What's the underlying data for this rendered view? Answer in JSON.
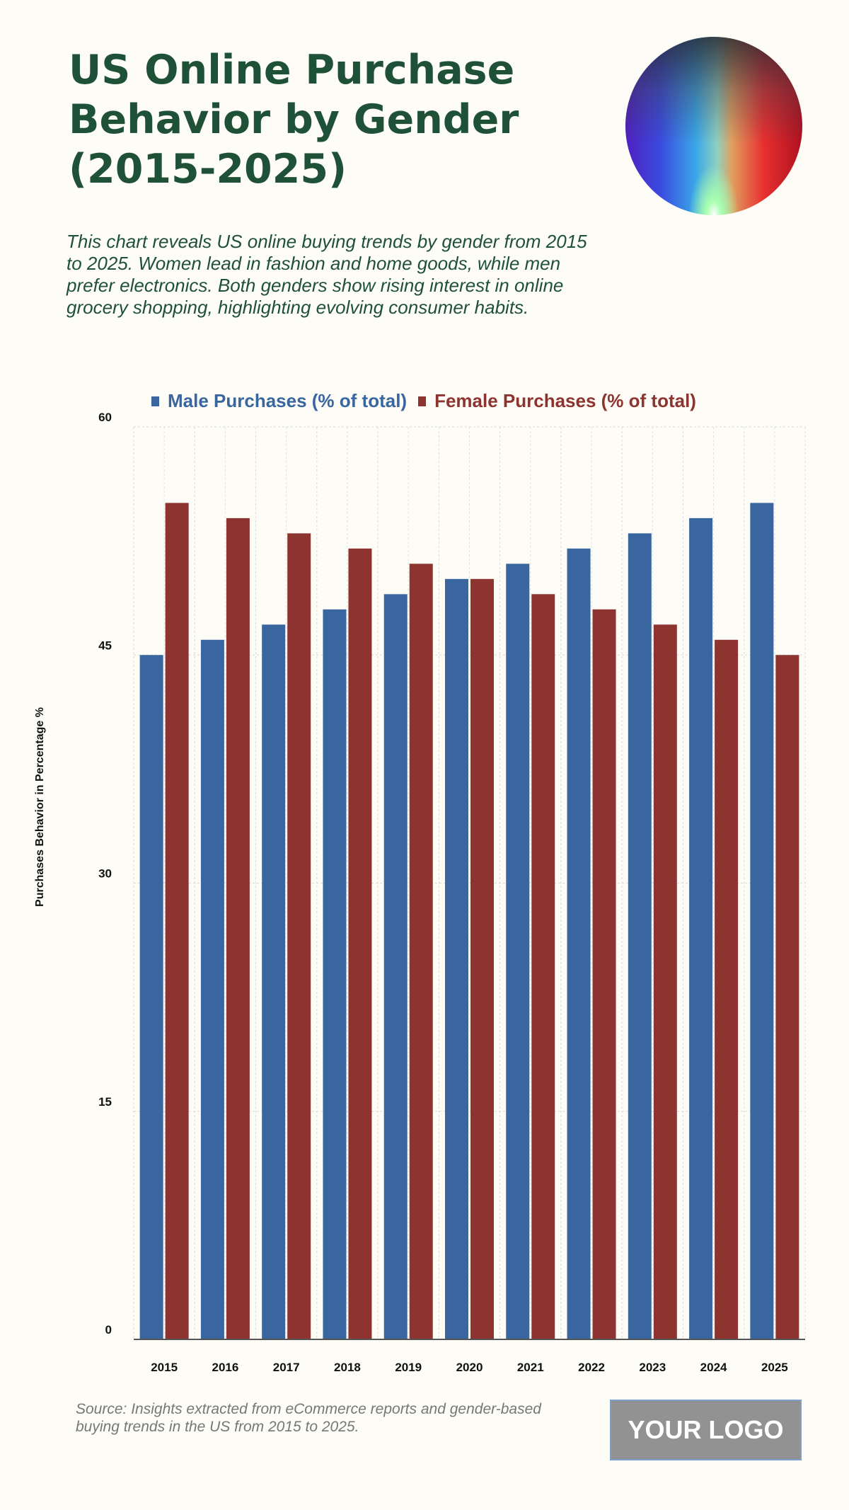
{
  "header": {
    "title": "US Online Purchase Behavior by Gender (2015-2025)",
    "subtitle": "This chart reveals US online buying trends by gender from 2015 to 2025. Women lead in fashion and home goods, while men prefer electronics. Both genders show rising interest in online grocery shopping, highlighting evolving consumer habits."
  },
  "chart_data": {
    "type": "bar",
    "categories": [
      "2015",
      "2016",
      "2017",
      "2018",
      "2019",
      "2020",
      "2021",
      "2022",
      "2023",
      "2024",
      "2025"
    ],
    "series": [
      {
        "name": "Male Purchases (% of total)",
        "color": "#3a66a0",
        "values": [
          45,
          46,
          47,
          48,
          49,
          50,
          51,
          52,
          53,
          54,
          55
        ]
      },
      {
        "name": "Female Purchases (% of total)",
        "color": "#8e3430",
        "values": [
          55,
          54,
          53,
          52,
          51,
          50,
          49,
          48,
          47,
          46,
          45
        ]
      }
    ],
    "ylabel": "Purchases Behavior in Percentage %",
    "xlabel": "",
    "ylim": [
      0,
      60
    ],
    "yticks": [
      "0",
      "15",
      "30",
      "45",
      "60"
    ],
    "grid": true,
    "legend": "top"
  },
  "footer": {
    "source": "Source: Insights extracted from eCommerce reports and gender-based buying trends in the US from 2015 to 2025.",
    "logo": "YOUR LOGO"
  }
}
